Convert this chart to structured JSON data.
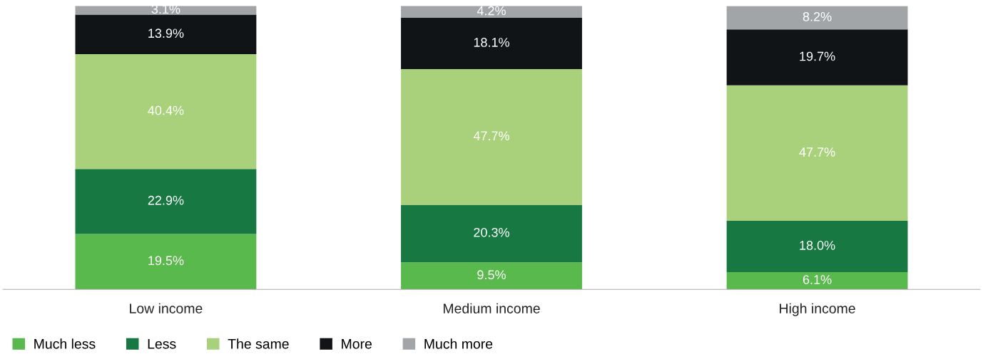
{
  "chart_data": {
    "type": "bar",
    "stacked": true,
    "categories": [
      "Low income",
      "Medium income",
      "High income"
    ],
    "series": [
      {
        "name": "Much less",
        "color": "#5ab94c",
        "values": [
          19.5,
          9.5,
          6.1
        ],
        "value_labels": [
          "19.5%",
          "9.5%",
          "6.1%"
        ]
      },
      {
        "name": "Less",
        "color": "#177842",
        "values": [
          22.9,
          20.3,
          18.0
        ],
        "value_labels": [
          "22.9%",
          "20.3%",
          "18.0%"
        ]
      },
      {
        "name": "The same",
        "color": "#a9d17b",
        "values": [
          40.4,
          47.7,
          47.7
        ],
        "value_labels": [
          "40.4%",
          "47.7%",
          "47.7%"
        ]
      },
      {
        "name": "More",
        "color": "#111416",
        "values": [
          13.9,
          18.1,
          19.7
        ],
        "value_labels": [
          "13.9%",
          "18.1%",
          "19.7%"
        ]
      },
      {
        "name": "Much more",
        "color": "#a2a5a8",
        "values": [
          3.1,
          4.2,
          8.2
        ],
        "value_labels": [
          "3.1%",
          "4.2%",
          "8.2%"
        ]
      }
    ],
    "legend": "bottom left",
    "grid": false
  }
}
